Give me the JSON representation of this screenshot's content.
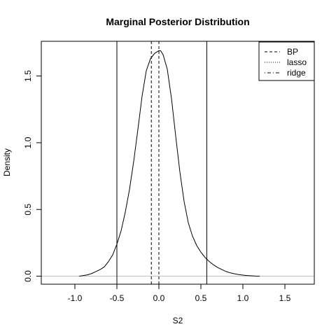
{
  "chart_data": {
    "type": "line",
    "title": "Marginal Posterior Distribution",
    "xlabel": "S2",
    "ylabel": "Density",
    "xlim": [
      -1.4,
      1.85
    ],
    "ylim": [
      -0.06,
      1.76
    ],
    "x_ticks": [
      -1.0,
      -0.5,
      0.0,
      0.5,
      1.0,
      1.5
    ],
    "x_tick_labels": [
      "-1.0",
      "-0.5",
      "0.0",
      "0.5",
      "1.0",
      "1.5"
    ],
    "y_ticks": [
      0.0,
      0.5,
      1.0,
      1.5
    ],
    "y_tick_labels": [
      "0.0",
      "0.5",
      "1.0",
      "1.5"
    ],
    "grid": false,
    "legend_position": "top-right",
    "baseline": 0,
    "series": [
      {
        "x": [
          -0.95,
          -0.9,
          -0.85,
          -0.8,
          -0.75,
          -0.7,
          -0.65,
          -0.6,
          -0.55,
          -0.5,
          -0.45,
          -0.4,
          -0.35,
          -0.3,
          -0.25,
          -0.2,
          -0.15,
          -0.1,
          -0.05,
          0.0,
          0.02,
          0.05,
          0.1,
          0.15,
          0.2,
          0.25,
          0.3,
          0.35,
          0.4,
          0.45,
          0.5,
          0.55,
          0.6,
          0.65,
          0.7,
          0.75,
          0.8,
          0.85,
          0.9,
          0.95,
          1.0,
          1.05,
          1.1,
          1.15,
          1.2
        ],
        "y": [
          0.0,
          0.005,
          0.01,
          0.02,
          0.035,
          0.05,
          0.07,
          0.11,
          0.16,
          0.24,
          0.34,
          0.48,
          0.65,
          0.86,
          1.1,
          1.35,
          1.54,
          1.63,
          1.67,
          1.69,
          1.69,
          1.66,
          1.55,
          1.33,
          1.05,
          0.78,
          0.56,
          0.4,
          0.3,
          0.23,
          0.18,
          0.14,
          0.11,
          0.085,
          0.065,
          0.05,
          0.035,
          0.025,
          0.018,
          0.012,
          0.008,
          0.005,
          0.003,
          0.001,
          0.0
        ]
      }
    ],
    "vertical_lines": [
      {
        "x": -0.5,
        "style": "solid"
      },
      {
        "x": 0.57,
        "style": "solid"
      },
      {
        "x": -0.09,
        "style": "dashed"
      },
      {
        "x": 0.0,
        "style": "dashed"
      }
    ],
    "legend": [
      {
        "label": "BP",
        "style": "dashed"
      },
      {
        "label": "lasso",
        "style": "dotted"
      },
      {
        "label": "ridge",
        "style": "dotdash"
      }
    ],
    "colors": {
      "line": "#000000",
      "baseline": "#bebebe",
      "background": "#ffffff"
    }
  }
}
